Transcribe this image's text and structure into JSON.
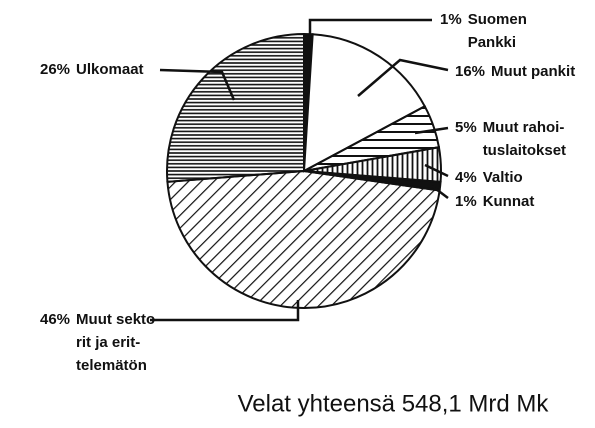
{
  "chart_data": {
    "type": "pie",
    "title": "Velat yhteensä 548,1 Mrd Mk",
    "categories": [
      [
        "Suomen",
        "Pankki"
      ],
      [
        "Muut pankit"
      ],
      [
        "Muut rahoi-",
        "tuslaitokset"
      ],
      [
        "Valtio"
      ],
      [
        "Kunnat"
      ],
      [
        "Muut sekto-",
        "rit ja erit-",
        "telemätön"
      ],
      [
        "Ulkomaat"
      ]
    ],
    "values": [
      1,
      16,
      5,
      4,
      1,
      46,
      26
    ],
    "value_labels": [
      "1%",
      "16%",
      "5%",
      "4%",
      "1%",
      "46%",
      "26%"
    ],
    "patterns": [
      "solid",
      "none",
      "horizontal",
      "vertical",
      "solid",
      "diagonal",
      "horizontal-dense"
    ],
    "color": "#111111"
  }
}
